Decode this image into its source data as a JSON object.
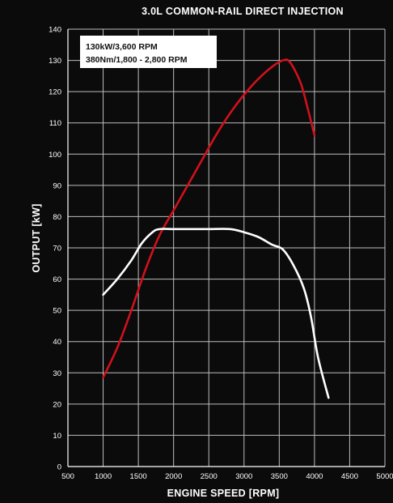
{
  "chart_data": {
    "type": "line",
    "title": "3.0L COMMON-RAIL DIRECT INJECTION",
    "xlabel": "ENGINE SPEED [RPM]",
    "ylabel": "OUTPUT [kW]",
    "xlim": [
      500,
      5000
    ],
    "ylim": [
      0,
      140
    ],
    "xticks": [
      500,
      1000,
      1500,
      2000,
      2500,
      3000,
      3500,
      4000,
      4500,
      5000
    ],
    "yticks": [
      0,
      10,
      20,
      30,
      40,
      50,
      60,
      70,
      80,
      90,
      100,
      110,
      120,
      130,
      140
    ],
    "grid": true,
    "annotation": {
      "lines": [
        "130kW/3,600 RPM",
        "380Nm/1,800 - 2,800 RPM"
      ],
      "position": "top-left"
    },
    "series": [
      {
        "color": "#d0111b",
        "points": [
          [
            1000,
            28.5
          ],
          [
            1200,
            38
          ],
          [
            1400,
            50
          ],
          [
            1600,
            63
          ],
          [
            1800,
            74
          ],
          [
            2000,
            82
          ],
          [
            2200,
            90
          ],
          [
            2400,
            98
          ],
          [
            2600,
            106
          ],
          [
            2800,
            113
          ],
          [
            3000,
            119
          ],
          [
            3200,
            124
          ],
          [
            3400,
            128
          ],
          [
            3550,
            130
          ],
          [
            3650,
            129.5
          ],
          [
            3800,
            123
          ],
          [
            3900,
            115
          ],
          [
            4000,
            106
          ]
        ]
      },
      {
        "color": "#ffffff",
        "points": [
          [
            1000,
            55
          ],
          [
            1200,
            60
          ],
          [
            1400,
            66
          ],
          [
            1550,
            71.5
          ],
          [
            1700,
            75
          ],
          [
            1800,
            76
          ],
          [
            2000,
            76
          ],
          [
            2200,
            76
          ],
          [
            2500,
            76
          ],
          [
            2800,
            76
          ],
          [
            3000,
            75
          ],
          [
            3200,
            73.5
          ],
          [
            3400,
            71
          ],
          [
            3550,
            69.5
          ],
          [
            3700,
            64.5
          ],
          [
            3850,
            57
          ],
          [
            3950,
            48
          ],
          [
            4050,
            35
          ],
          [
            4200,
            22
          ]
        ]
      }
    ]
  }
}
